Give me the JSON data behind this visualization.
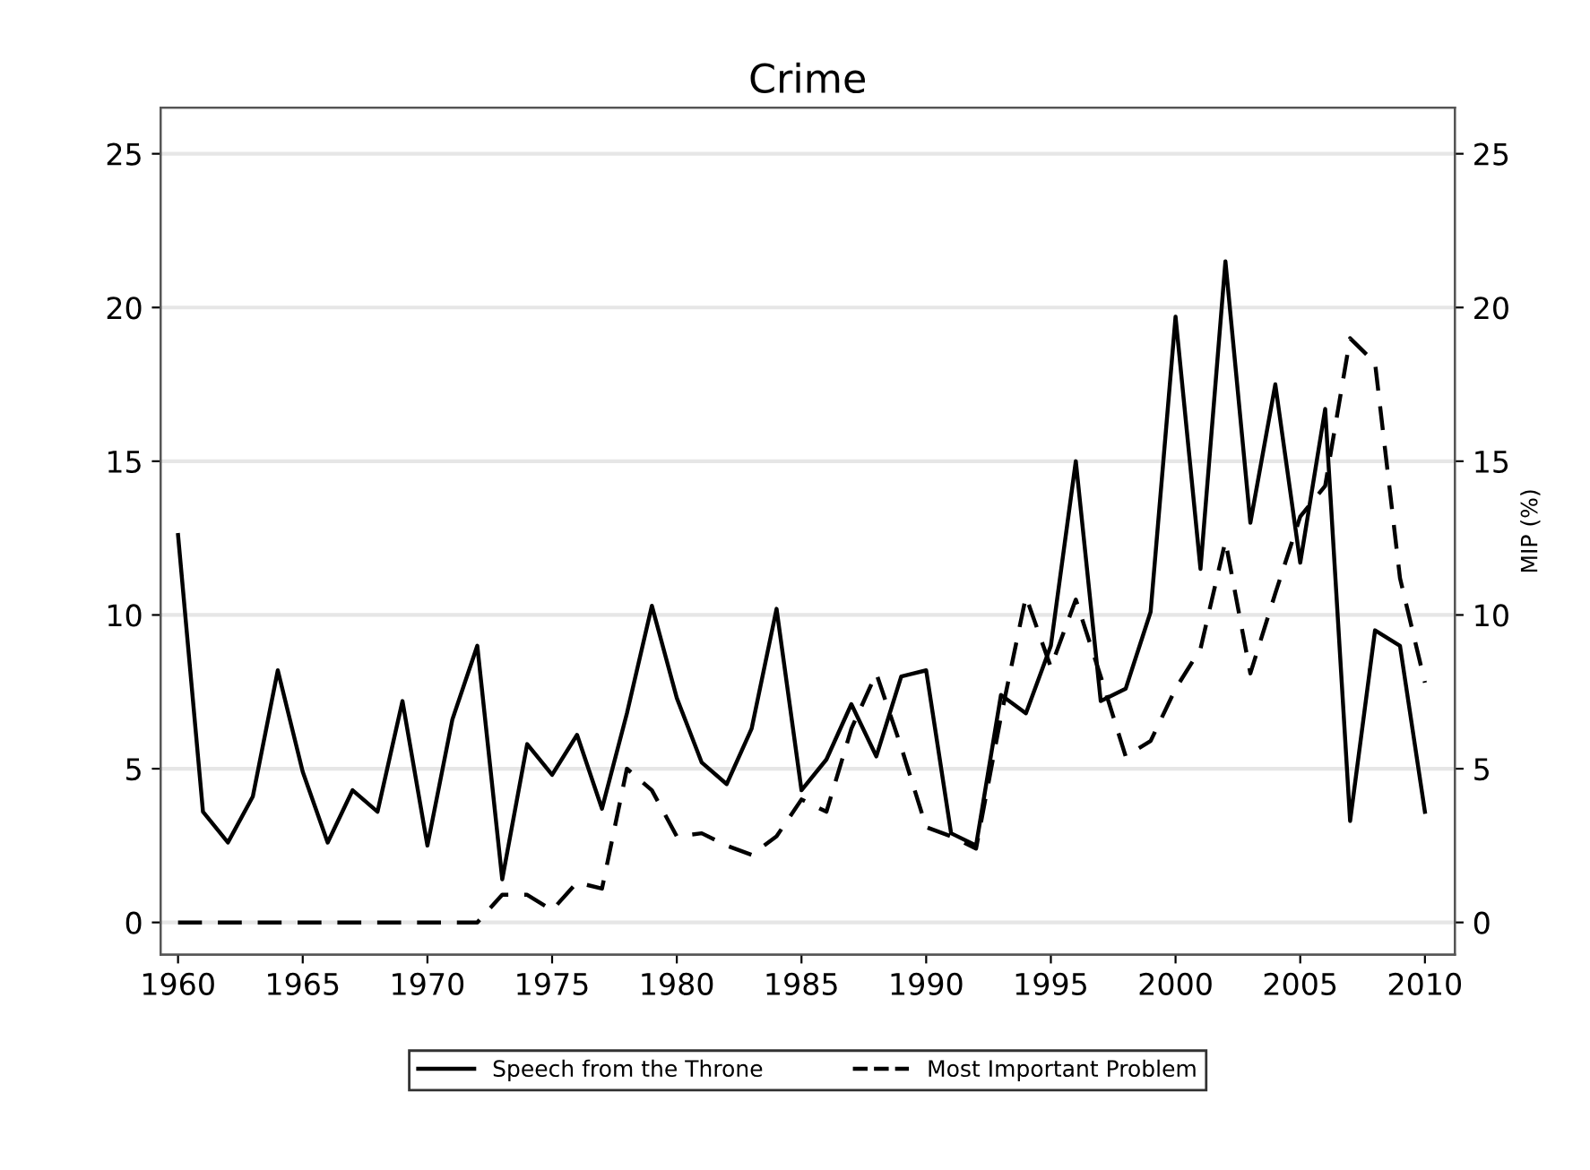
{
  "chart_data": {
    "type": "line",
    "title": "Crime",
    "y2label": "MIP (%)",
    "x": [
      1960,
      1961,
      1962,
      1963,
      1964,
      1965,
      1966,
      1967,
      1968,
      1969,
      1970,
      1971,
      1972,
      1973,
      1974,
      1975,
      1976,
      1977,
      1978,
      1979,
      1980,
      1981,
      1982,
      1983,
      1984,
      1985,
      1986,
      1987,
      1988,
      1989,
      1990,
      1991,
      1992,
      1993,
      1994,
      1995,
      1996,
      1997,
      1998,
      1999,
      2000,
      2001,
      2002,
      2003,
      2004,
      2005,
      2006,
      2007,
      2008,
      2009,
      2010
    ],
    "series": [
      {
        "name": "Speech from the Throne",
        "color": "#000000",
        "line_style": "solid",
        "values": [
          12.6,
          3.6,
          2.6,
          4.1,
          8.2,
          4.9,
          2.6,
          4.3,
          3.6,
          7.2,
          2.5,
          6.6,
          9.0,
          1.4,
          5.8,
          4.8,
          6.1,
          3.7,
          6.8,
          10.3,
          7.3,
          5.2,
          4.5,
          6.3,
          10.2,
          4.3,
          5.3,
          7.1,
          5.4,
          8.0,
          8.2,
          2.9,
          2.5,
          7.4,
          6.8,
          9.0,
          15.0,
          7.2,
          7.6,
          10.1,
          19.7,
          11.5,
          21.5,
          13.0,
          17.5,
          11.7,
          16.7,
          3.3,
          9.5,
          9.0,
          3.6
        ]
      },
      {
        "name": "Most Important Problem",
        "color": "#000000",
        "line_style": "dashed",
        "axis": "y2",
        "values": [
          0,
          0,
          0,
          0,
          0,
          0,
          0,
          0,
          0,
          0,
          0,
          0,
          0,
          0.9,
          0.9,
          0.4,
          1.3,
          1.1,
          5.0,
          4.3,
          2.8,
          2.9,
          2.5,
          2.2,
          2.8,
          4.0,
          3.6,
          6.3,
          8.1,
          5.7,
          3.1,
          2.8,
          2.4,
          6.7,
          10.6,
          8.3,
          10.5,
          8.0,
          5.4,
          5.9,
          7.6,
          8.9,
          12.4,
          8.1,
          10.7,
          13.2,
          14.2,
          19.0,
          18.2,
          11.2,
          7.8
        ]
      }
    ],
    "xlim": [
      1959.3,
      2011.2
    ],
    "xticks": [
      1960,
      1965,
      1970,
      1975,
      1980,
      1985,
      1990,
      1995,
      2000,
      2005,
      2010
    ],
    "ylim": [
      -1.05,
      26.5
    ],
    "yticks": [
      0,
      5,
      10,
      15,
      20,
      25
    ],
    "y2lim": [
      -1.05,
      26.5
    ],
    "y2ticks": [
      0,
      5,
      10,
      15,
      20,
      25
    ],
    "grid": "y",
    "legend": "bottom",
    "marker": "none"
  }
}
